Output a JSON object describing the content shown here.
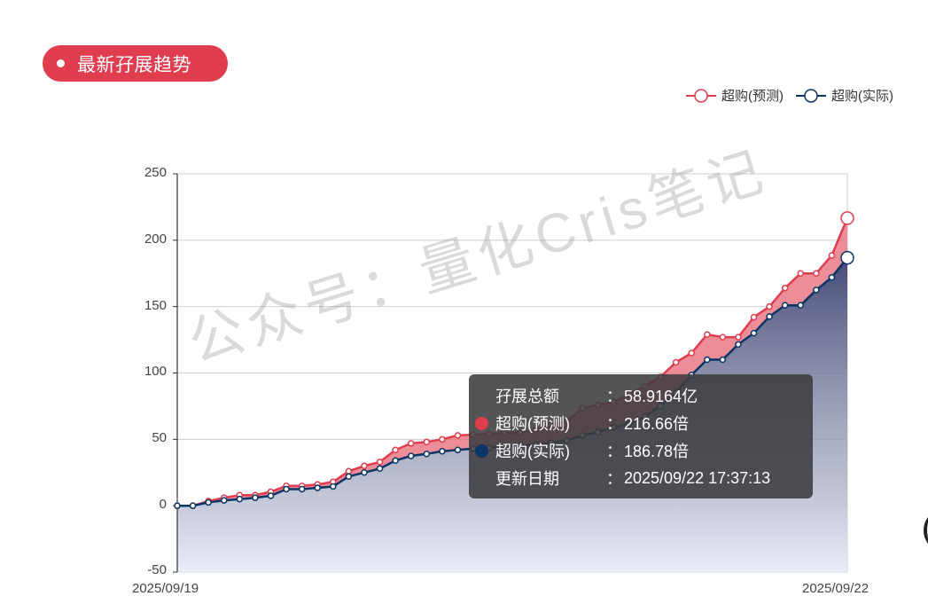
{
  "header": {
    "title": "最新孖展趋势"
  },
  "legend": {
    "items": [
      {
        "label": "超购(预测)",
        "color": "#e03d4f"
      },
      {
        "label": "超购(实际)",
        "color": "#0b3566"
      }
    ]
  },
  "axis": {
    "y_ticks": [
      "250",
      "200",
      "150",
      "100",
      "50",
      "0",
      "-50"
    ],
    "x_start": "2025/09/19",
    "x_end": "2025/09/22"
  },
  "tooltip": {
    "rows": [
      {
        "key": "孖展总额",
        "colon": "：",
        "value": "58.9164亿"
      },
      {
        "key": "超购(预测)",
        "colon": "：",
        "value": "216.66倍",
        "color": "#e03d4f"
      },
      {
        "key": "超购(实际)",
        "colon": "：",
        "value": "186.78倍",
        "color": "#0b3566"
      },
      {
        "key": "更新日期",
        "colon": "：",
        "value": "2025/09/22 17:37:13"
      }
    ]
  },
  "watermark": "公众号：量化Cris笔记",
  "chart_data": {
    "type": "area",
    "title": "最新孖展趋势",
    "xlabel": "",
    "ylabel": "",
    "ylim": [
      -50,
      250
    ],
    "y_ticks": [
      -50,
      0,
      50,
      100,
      150,
      200,
      250
    ],
    "x_tick_labels": [
      "2025/09/19",
      "2025/09/22"
    ],
    "grid": true,
    "legend_position": "top-right",
    "x": [
      0,
      1,
      2,
      3,
      4,
      5,
      6,
      7,
      8,
      9,
      10,
      11,
      12,
      13,
      14,
      15,
      16,
      17,
      18,
      19,
      20,
      21,
      22,
      23,
      24,
      25,
      26,
      27,
      28,
      29,
      30,
      31,
      32,
      33,
      34,
      35,
      36,
      37,
      38,
      39,
      40,
      41,
      42,
      43
    ],
    "series": [
      {
        "name": "超购(预测)",
        "color": "#e03d4f",
        "values": [
          0,
          0,
          3.5,
          6,
          8,
          8,
          10.5,
          15,
          15,
          16,
          18,
          26,
          30,
          33,
          42,
          47,
          48,
          50,
          53,
          53.5,
          54,
          55,
          55,
          57,
          61,
          63.5,
          73.5,
          76,
          78,
          84,
          90,
          97,
          108,
          115,
          129,
          127,
          127,
          142,
          150,
          164,
          175,
          175,
          188.5,
          216.66
        ]
      },
      {
        "name": "超购(实际)",
        "color": "#0b3566",
        "values": [
          0,
          0,
          2.5,
          4,
          5,
          6,
          7.5,
          12.5,
          12.5,
          13.5,
          14.5,
          22,
          25,
          28,
          34,
          37.5,
          39,
          41,
          42,
          43,
          43.5,
          45,
          45.5,
          46,
          47.5,
          49,
          53,
          55.5,
          59,
          61.5,
          67,
          75,
          85,
          98.5,
          110,
          110,
          121.5,
          130,
          142.5,
          151,
          151,
          162.5,
          172,
          186.78
        ]
      }
    ],
    "annotations": [
      {
        "type": "tooltip",
        "孖展总额": "58.9164亿",
        "超购(预测)": "216.66倍",
        "超购(实际)": "186.78倍",
        "更新日期": "2025/09/22 17:37:13"
      },
      {
        "type": "watermark",
        "text": "公众号：量化Cris笔记"
      }
    ]
  }
}
